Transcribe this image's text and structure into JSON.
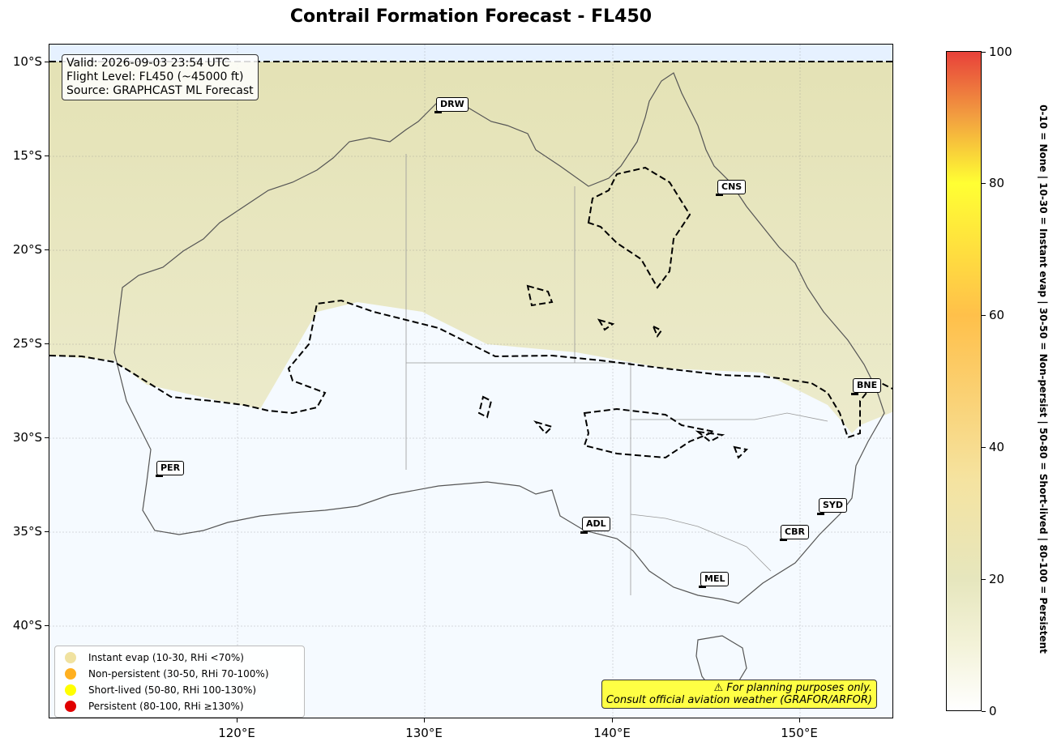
{
  "title": "Contrail Formation Forecast - FL450",
  "info": {
    "valid": "Valid: 2026-09-03 23:54 UTC",
    "flight_level": "Flight Level: FL450 (~45000 ft)",
    "source": "Source: GRAPHCAST ML Forecast"
  },
  "axes": {
    "lat_labels": [
      "10°S",
      "15°S",
      "20°S",
      "25°S",
      "30°S",
      "35°S",
      "40°S"
    ],
    "lon_labels": [
      "120°E",
      "130°E",
      "140°E",
      "150°E"
    ]
  },
  "cities": [
    {
      "code": "DRW"
    },
    {
      "code": "CNS"
    },
    {
      "code": "BNE"
    },
    {
      "code": "PER"
    },
    {
      "code": "ADL"
    },
    {
      "code": "SYD"
    },
    {
      "code": "CBR"
    },
    {
      "code": "MEL"
    }
  ],
  "legend": [
    {
      "label": "Instant evap (10-30, RHi <70%)",
      "color": "#f0e2a0"
    },
    {
      "label": "Non-persistent (30-50, RHi 70-100%)",
      "color": "#ffb020"
    },
    {
      "label": "Short-lived (50-80, RHi 100-130%)",
      "color": "#ffff00"
    },
    {
      "label": "Persistent (80-100, RHi ≥130%)",
      "color": "#e00000"
    }
  ],
  "warning": {
    "line1": "⚠ For planning purposes only.",
    "line2": "Consult official aviation weather (GRAFOR/ARFOR)"
  },
  "colorbar": {
    "ticks": [
      "0",
      "20",
      "40",
      "60",
      "80",
      "100"
    ],
    "side_label": "0-10 = None  |  10-30 = Instant evap  |  30-50 = Non-persist  |  50-80 = Short-lived  |  80-100 = Persistent"
  },
  "colors": {
    "land_fill": "#e6e6bd",
    "ocean_fill": "#f5faff",
    "contour": "#000000",
    "coast": "#555555"
  }
}
